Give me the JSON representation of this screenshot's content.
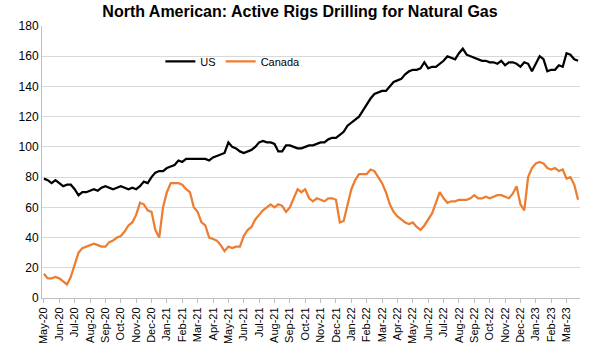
{
  "chart_data": {
    "type": "line",
    "title": "North American: Active Rigs Drilling for Natural Gas",
    "categories": [
      "May-20",
      null,
      null,
      null,
      "Jun-20",
      null,
      null,
      null,
      "Jul-20",
      null,
      null,
      null,
      "Aug-20",
      null,
      null,
      null,
      "Sep-20",
      null,
      null,
      null,
      "Oct-20",
      null,
      null,
      null,
      "Nov-20",
      null,
      null,
      null,
      "Dec-20",
      null,
      null,
      null,
      "Jan-21",
      null,
      null,
      null,
      "Feb-21",
      null,
      null,
      null,
      "Mar-21",
      null,
      null,
      null,
      "Apr-21",
      null,
      null,
      null,
      "May-21",
      null,
      null,
      null,
      "Jun-21",
      null,
      null,
      null,
      "Jul-21",
      null,
      null,
      null,
      "Aug-21",
      null,
      null,
      null,
      "Sep-21",
      null,
      null,
      null,
      "Oct-21",
      null,
      null,
      null,
      "Nov-21",
      null,
      null,
      null,
      "Dec-21",
      null,
      null,
      null,
      "Jan-22",
      null,
      null,
      null,
      "Feb-22",
      null,
      null,
      null,
      "Mar-22",
      null,
      null,
      null,
      "Apr-22",
      null,
      null,
      null,
      "May-22",
      null,
      null,
      null,
      "Jun-22",
      null,
      null,
      null,
      "Jul-22",
      null,
      null,
      null,
      "Aug-22",
      null,
      null,
      null,
      "Sep-22",
      null,
      null,
      null,
      "Oct-22",
      null,
      null,
      null,
      "Nov-22",
      null,
      null,
      null,
      "Dec-22",
      null,
      null,
      null,
      "Jan-23",
      null,
      null,
      null,
      "Feb-23",
      null,
      null,
      null,
      "Mar-23",
      null,
      null,
      null
    ],
    "series": [
      {
        "name": "US",
        "color": "#000000",
        "values": [
          79,
          78,
          76,
          78,
          76,
          74,
          75,
          75,
          72,
          68,
          70,
          70,
          71,
          72,
          71,
          73,
          74,
          73,
          72,
          73,
          74,
          73,
          72,
          73,
          72,
          74,
          77,
          76,
          80,
          83,
          84,
          84,
          86,
          87,
          88,
          91,
          90,
          92,
          92,
          92,
          92,
          92,
          92,
          91,
          93,
          94,
          95,
          96,
          103,
          100,
          99,
          97,
          96,
          97,
          98,
          100,
          103,
          104,
          103,
          103,
          102,
          97,
          97,
          101,
          101,
          100,
          99,
          99,
          100,
          101,
          101,
          102,
          103,
          103,
          105,
          106,
          106,
          108,
          110,
          114,
          116,
          118,
          120,
          124,
          128,
          132,
          135,
          136,
          137,
          137,
          140,
          143,
          144,
          145,
          148,
          150,
          151,
          151,
          152,
          156,
          152,
          153,
          153,
          155,
          157,
          160,
          159,
          158,
          162,
          165,
          161,
          160,
          159,
          158,
          157,
          157,
          156,
          156,
          155,
          157,
          154,
          156,
          156,
          155,
          153,
          156,
          155,
          150,
          155,
          160,
          158,
          150,
          151,
          151,
          154,
          153,
          162,
          161,
          158,
          157
        ]
      },
      {
        "name": "Canada",
        "color": "#ED7D31",
        "values": [
          16,
          13,
          13,
          14,
          13,
          11,
          9,
          14,
          22,
          30,
          33,
          34,
          35,
          36,
          35,
          34,
          34,
          37,
          38,
          40,
          41,
          44,
          48,
          50,
          55,
          63,
          62,
          58,
          57,
          45,
          40,
          60,
          70,
          76,
          76,
          76,
          75,
          72,
          70,
          60,
          57,
          50,
          48,
          40,
          39,
          38,
          35,
          31,
          34,
          33,
          34,
          34,
          41,
          45,
          47,
          52,
          55,
          58,
          60,
          62,
          60,
          62,
          61,
          57,
          60,
          66,
          72,
          70,
          72,
          66,
          64,
          66,
          65,
          64,
          66,
          66,
          65,
          50,
          51,
          62,
          72,
          78,
          82,
          82,
          82,
          85,
          84,
          80,
          76,
          70,
          62,
          57,
          54,
          52,
          50,
          49,
          50,
          47,
          45,
          48,
          52,
          56,
          63,
          70,
          66,
          63,
          64,
          64,
          65,
          65,
          65,
          66,
          68,
          66,
          66,
          67,
          66,
          67,
          68,
          68,
          67,
          66,
          69,
          74,
          62,
          58,
          80,
          86,
          89,
          90,
          89,
          86,
          85,
          86,
          84,
          85,
          79,
          80,
          75,
          65
        ]
      }
    ],
    "ylim": [
      0,
      180
    ],
    "yticks": [
      0,
      20,
      40,
      60,
      80,
      100,
      120,
      140,
      160,
      180
    ],
    "grid": true,
    "legend": "upper left"
  }
}
